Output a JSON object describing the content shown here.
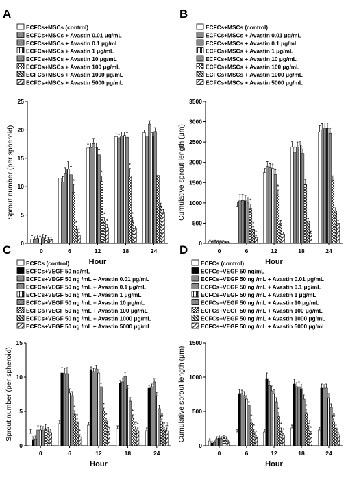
{
  "chart_data": [
    {
      "type": "bar",
      "panel_label": "A",
      "xlabel": "Hour",
      "ylabel": "Sprout number (per spheroid)",
      "categories": [
        "0",
        "6",
        "12",
        "18",
        "24"
      ],
      "ylim": [
        0,
        25
      ],
      "yticks": [
        "0",
        "5",
        "10",
        "15",
        "20",
        "25"
      ],
      "series": [
        {
          "name": "ECFCs+MSCs  (control)",
          "pattern": "white",
          "values": [
            0.8,
            11.5,
            16.8,
            18.8,
            19.5
          ],
          "errors": [
            0.6,
            0.9,
            0.7,
            0.5,
            0.5
          ]
        },
        {
          "name": "ECFCs+MSCs  + Avastin  0.01 μg/mL",
          "pattern": "gray",
          "values": [
            0.7,
            10.8,
            16.9,
            18.6,
            18.9
          ],
          "errors": [
            0.5,
            1.0,
            0.8,
            0.6,
            0.7
          ]
        },
        {
          "name": "ECFCs+MSCs  + Avastin  0.1 μg/mL",
          "pattern": "gray",
          "values": [
            0.9,
            12.3,
            17.6,
            18.9,
            21.0
          ],
          "errors": [
            0.6,
            1.0,
            0.9,
            0.7,
            0.6
          ]
        },
        {
          "name": "ECFCs+MSCs  + Avastin  1 μg/mL",
          "pattern": "vlines",
          "values": [
            0.8,
            13.1,
            16.9,
            19.0,
            18.9
          ],
          "errors": [
            0.5,
            1.3,
            0.8,
            0.6,
            0.6
          ]
        },
        {
          "name": "ECFCs+MSCs  + Avastin  10 μg/mL",
          "pattern": "gray",
          "values": [
            1.0,
            12.1,
            15.6,
            18.7,
            19.7
          ],
          "errors": [
            0.6,
            1.5,
            0.9,
            0.8,
            0.7
          ]
        },
        {
          "name": "ECFCs+MSCs  + Avastin  100 μg/mL",
          "pattern": "check",
          "values": [
            0.8,
            9.0,
            10.9,
            11.9,
            12.0
          ],
          "errors": [
            0.6,
            1.4,
            1.0,
            1.3,
            1.1
          ]
        },
        {
          "name": "ECFCs+MSCs  + Avastin  1000 μg/mL",
          "pattern": "dhatch",
          "values": [
            0.6,
            2.5,
            3.9,
            4.0,
            6.5
          ],
          "errors": [
            0.5,
            0.5,
            0.6,
            0.6,
            0.6
          ]
        },
        {
          "name": "ECFCs+MSCs  + Avastin  5000 μg/mL",
          "pattern": "hatch",
          "values": [
            0.7,
            1.5,
            2.8,
            2.6,
            5.5
          ],
          "errors": [
            0.4,
            0.4,
            0.5,
            0.5,
            0.5
          ]
        }
      ],
      "annotations": [
        "*",
        "*",
        "*",
        "*",
        "*",
        "*",
        "*",
        "*"
      ]
    },
    {
      "type": "bar",
      "panel_label": "B",
      "xlabel": "Hour",
      "ylabel": "Cumulative sprout length (μm)",
      "categories": [
        "0",
        "6",
        "12",
        "18",
        "24"
      ],
      "ylim": [
        0,
        3500
      ],
      "yticks": [
        "0",
        "500",
        "1000",
        "1500",
        "2000",
        "2500",
        "3000",
        "3500"
      ],
      "series": [
        {
          "name": "ECFCs+MSCs  (control)",
          "pattern": "white",
          "values": [
            50,
            900,
            1750,
            2380,
            2750
          ],
          "errors": [
            30,
            120,
            100,
            130,
            150
          ]
        },
        {
          "name": "ECFCs+MSCs  + Avastin  0.01 μg/mL",
          "pattern": "gray",
          "values": [
            40,
            1050,
            1900,
            2250,
            2800
          ],
          "errors": [
            30,
            150,
            120,
            120,
            150
          ]
        },
        {
          "name": "ECFCs+MSCs  + Avastin  0.1 μg/mL",
          "pattern": "gray",
          "values": [
            50,
            1060,
            1870,
            2380,
            2830
          ],
          "errors": [
            30,
            150,
            100,
            120,
            140
          ]
        },
        {
          "name": "ECFCs+MSCs  + Avastin  1 μg/mL",
          "pattern": "vlines",
          "values": [
            40,
            1050,
            1850,
            2420,
            2840
          ],
          "errors": [
            30,
            120,
            110,
            100,
            120
          ]
        },
        {
          "name": "ECFCs+MSCs  + Avastin  10 μg/mL",
          "pattern": "gray",
          "values": [
            40,
            1000,
            1700,
            2220,
            2720
          ],
          "errors": [
            30,
            140,
            120,
            110,
            120
          ]
        },
        {
          "name": "ECFCs+MSCs  + Avastin  100 μg/mL",
          "pattern": "check",
          "values": [
            40,
            850,
            1200,
            1450,
            1550
          ],
          "errors": [
            30,
            120,
            120,
            130,
            120
          ]
        },
        {
          "name": "ECFCs+MSCs  + Avastin  1000 μg/mL",
          "pattern": "dhatch",
          "values": [
            30,
            350,
            500,
            550,
            800
          ],
          "errors": [
            20,
            60,
            70,
            70,
            80
          ]
        },
        {
          "name": "ECFCs+MSCs  + Avastin  5000 μg/mL",
          "pattern": "hatch",
          "values": [
            20,
            150,
            230,
            250,
            500
          ],
          "errors": [
            20,
            40,
            50,
            50,
            60
          ]
        }
      ],
      "annotations": [
        "*",
        "*",
        "*",
        "*"
      ]
    },
    {
      "type": "bar",
      "panel_label": "C",
      "xlabel": "Hour",
      "ylabel": "Sprout number (per spheroid)",
      "categories": [
        "0",
        "6",
        "12",
        "18",
        "24"
      ],
      "ylim": [
        0,
        15
      ],
      "yticks": [
        "0",
        "5",
        "10",
        "15"
      ],
      "series": [
        {
          "name": "ECFCs  (control)",
          "pattern": "white",
          "values": [
            1.8,
            3.2,
            3.0,
            2.5,
            2.2
          ],
          "errors": [
            0.6,
            0.5,
            0.4,
            0.4,
            0.4
          ]
        },
        {
          "name": "ECFCs+VEGF  50 ng/mL",
          "pattern": "black",
          "values": [
            0.9,
            10.6,
            11.1,
            9.1,
            8.4
          ],
          "errors": [
            0.4,
            0.8,
            0.4,
            0.4,
            0.4
          ]
        },
        {
          "name": "ECFCs+VEGF  50 ng /mL + Avastin  0.01 μg/mL",
          "pattern": "gray",
          "values": [
            1.0,
            10.5,
            10.8,
            9.3,
            8.6
          ],
          "errors": [
            0.4,
            0.8,
            0.5,
            0.5,
            0.4
          ]
        },
        {
          "name": "ECFCs+VEGF  50 ng /mL + Avastin  0.1 μg/mL",
          "pattern": "gray",
          "values": [
            2.3,
            10.5,
            11.2,
            10.1,
            9.3
          ],
          "errors": [
            0.6,
            0.9,
            0.5,
            0.6,
            0.5
          ]
        },
        {
          "name": "ECFCs+VEGF  50 ng /mL + Avastin  1 μg/mL",
          "pattern": "vlines",
          "values": [
            2.3,
            7.7,
            10.6,
            8.3,
            7.3
          ],
          "errors": [
            0.6,
            0.6,
            0.5,
            0.5,
            0.5
          ]
        },
        {
          "name": "ECFCs+VEGF  50 ng /mL + Avastin  10 μg/mL",
          "pattern": "gray",
          "values": [
            2.2,
            7.3,
            8.6,
            6.5,
            5.4
          ],
          "errors": [
            0.6,
            0.6,
            0.5,
            0.5,
            0.5
          ]
        },
        {
          "name": "ECFCs+VEGF  50 ng /mL + Avastin  100 μg/mL",
          "pattern": "check",
          "values": [
            2.5,
            4.6,
            5.0,
            4.0,
            3.5
          ],
          "errors": [
            0.6,
            0.5,
            0.5,
            0.5,
            0.4
          ]
        },
        {
          "name": "ECFCs+VEGF  50 ng /mL + Avastin  1000 μg/mL",
          "pattern": "dhatch",
          "values": [
            2.2,
            3.5,
            3.6,
            2.4,
            2.3
          ],
          "errors": [
            0.5,
            0.4,
            0.4,
            0.4,
            0.4
          ]
        },
        {
          "name": "ECFCs+VEGF  50 ng /mL + Avastin  5000 μg/mL",
          "pattern": "hatch",
          "values": [
            1.9,
            1.3,
            1.8,
            2.2,
            2.2
          ],
          "errors": [
            0.5,
            0.3,
            0.3,
            0.4,
            0.4
          ]
        }
      ],
      "annotations": [
        "*",
        "*",
        "*",
        "*",
        "*",
        "#",
        "*",
        "#",
        "*",
        "#",
        "*",
        "#"
      ]
    },
    {
      "type": "bar",
      "panel_label": "D",
      "xlabel": "Hour",
      "ylabel": "Cumulative sprout length (μm)",
      "categories": [
        "0",
        "6",
        "12",
        "18",
        "24"
      ],
      "ylim": [
        0,
        1500
      ],
      "yticks": [
        "0",
        "500",
        "1000",
        "1500"
      ],
      "series": [
        {
          "name": "ECFCs  (control)",
          "pattern": "white",
          "values": [
            70,
            200,
            200,
            260,
            230
          ],
          "errors": [
            30,
            40,
            40,
            40,
            40
          ]
        },
        {
          "name": "ECFCs+VEGF  50 ng/mL",
          "pattern": "black",
          "values": [
            40,
            760,
            980,
            900,
            840
          ],
          "errors": [
            20,
            60,
            80,
            70,
            60
          ]
        },
        {
          "name": "ECFCs+VEGF  50 ng /mL + Avastin  0.01 μg/mL",
          "pattern": "gray",
          "values": [
            50,
            760,
            880,
            860,
            840
          ],
          "errors": [
            20,
            50,
            60,
            60,
            50
          ]
        },
        {
          "name": "ECFCs+VEGF  50 ng /mL + Avastin  0.1 μg/mL",
          "pattern": "gray",
          "values": [
            100,
            730,
            800,
            860,
            840
          ],
          "errors": [
            30,
            60,
            70,
            70,
            60
          ]
        },
        {
          "name": "ECFCs+VEGF  50 ng /mL + Avastin  1 μg/mL",
          "pattern": "vlines",
          "values": [
            110,
            680,
            760,
            830,
            700
          ],
          "errors": [
            30,
            50,
            60,
            60,
            60
          ]
        },
        {
          "name": "ECFCs+VEGF  50 ng /mL + Avastin  10 μg/mL",
          "pattern": "gray",
          "values": [
            100,
            590,
            640,
            680,
            560
          ],
          "errors": [
            30,
            50,
            60,
            60,
            50
          ]
        },
        {
          "name": "ECFCs+VEGF  50 ng /mL + Avastin  100 μg/mL",
          "pattern": "check",
          "values": [
            120,
            330,
            430,
            480,
            350
          ],
          "errors": [
            30,
            50,
            50,
            50,
            40
          ]
        },
        {
          "name": "ECFCs+VEGF  50 ng /mL + Avastin  1000 μg/mL",
          "pattern": "dhatch",
          "values": [
            100,
            200,
            220,
            250,
            260
          ],
          "errors": [
            30,
            40,
            40,
            40,
            40
          ]
        },
        {
          "name": "ECFCs+VEGF  50 ng /mL + Avastin  5000 μg/mL",
          "pattern": "hatch",
          "values": [
            60,
            120,
            150,
            180,
            160
          ],
          "errors": [
            20,
            30,
            30,
            30,
            30
          ]
        }
      ],
      "annotations": [
        "*",
        "*",
        "*",
        "*",
        "*",
        "*",
        "*",
        "#",
        "*",
        "#"
      ]
    }
  ]
}
